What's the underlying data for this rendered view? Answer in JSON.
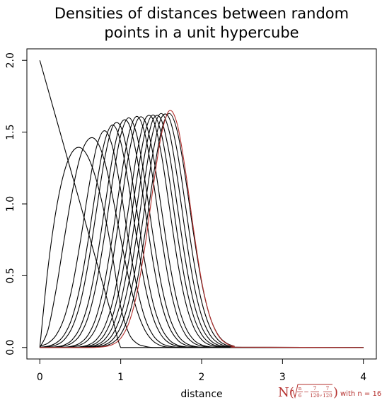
{
  "chart_data": {
    "type": "line",
    "title": [
      "Densities of distances between random",
      "points in a unit hypercube"
    ],
    "xlabel": "distance",
    "annotation": {
      "open": "N(",
      "frac1": [
        "n",
        "6"
      ],
      "minus": "−",
      "frac2": [
        "7",
        "120"
      ],
      "sep": ",",
      "frac3": [
        "7",
        "120"
      ],
      "close": ")",
      "suffix": "with n = 16"
    },
    "xlim": [
      -0.16,
      4.16
    ],
    "ylim": [
      -0.08,
      2.08
    ],
    "xticks": [
      0,
      1,
      2,
      3,
      4
    ],
    "yticks": [
      {
        "value": 0,
        "label": "0.0"
      },
      {
        "value": 0.5,
        "label": "0.5"
      },
      {
        "value": 1,
        "label": "1.0"
      },
      {
        "value": 1.5,
        "label": "1.5"
      },
      {
        "value": 2,
        "label": "2.0"
      }
    ],
    "grid": false,
    "x": [
      0,
      0.1,
      0.2,
      0.3,
      0.4,
      0.5,
      0.6,
      0.7,
      0.8,
      0.9,
      1.0,
      1.1,
      1.2,
      1.3,
      1.4,
      1.5,
      1.6,
      1.7,
      1.8,
      1.9,
      2.0,
      2.1,
      2.2,
      2.3,
      2.4,
      2.5,
      4
    ],
    "series": [
      {
        "color": "#000000",
        "values": [
          2,
          1.8,
          1.6,
          1.4,
          1.2,
          1.0,
          0.8,
          0.6,
          0.4,
          0.2,
          0,
          0,
          0,
          0,
          0,
          0,
          0,
          0,
          0,
          0,
          0,
          0,
          0,
          0,
          0,
          0,
          0
        ]
      },
      {
        "color": "#000000",
        "values": [
          0,
          0.55,
          0.953,
          1.219,
          1.361,
          1.392,
          1.322,
          1.164,
          0.931,
          0.633,
          0.283,
          0.099,
          0.029,
          0.008,
          0,
          0,
          0,
          0,
          0,
          0,
          0,
          0,
          0,
          0,
          0,
          0,
          0
        ]
      },
      {
        "color": "#000000",
        "values": [
          0,
          0.12,
          0.4,
          0.75,
          1.08,
          1.33,
          1.45,
          1.44,
          1.3,
          1.05,
          0.76,
          0.48,
          0.26,
          0.12,
          0.045,
          0.012,
          0.002,
          0,
          0,
          0,
          0,
          0,
          0,
          0,
          0,
          0,
          0
        ]
      },
      {
        "color": "#000000",
        "values": [
          0.009,
          0.03,
          0.085,
          0.204,
          0.42,
          0.735,
          1.096,
          1.394,
          1.51,
          1.394,
          1.096,
          0.735,
          0.42,
          0.204,
          0.085,
          0.03,
          0.009,
          0.002,
          0,
          0,
          0,
          0,
          0,
          0,
          0,
          0,
          0
        ]
      },
      {
        "color": "#000000",
        "values": [
          0.002,
          0.009,
          0.031,
          0.087,
          0.209,
          0.431,
          0.755,
          1.125,
          1.431,
          1.55,
          1.431,
          1.125,
          0.755,
          0.431,
          0.209,
          0.087,
          0.031,
          0.009,
          0.002,
          0,
          0,
          0,
          0,
          0,
          0,
          0,
          0
        ]
      },
      {
        "color": "#000000",
        "values": [
          0.001,
          0.005,
          0.017,
          0.053,
          0.14,
          0.309,
          0.589,
          0.953,
          1.311,
          1.539,
          1.539,
          1.311,
          0.953,
          0.589,
          0.309,
          0.14,
          0.053,
          0.017,
          0.005,
          0.001,
          0,
          0,
          0,
          0,
          0,
          0,
          0
        ]
      },
      {
        "color": "#000000",
        "values": [
          0,
          0.001,
          0.005,
          0.017,
          0.054,
          0.142,
          0.313,
          0.596,
          0.965,
          1.328,
          1.558,
          1.558,
          1.328,
          0.965,
          0.596,
          0.313,
          0.142,
          0.054,
          0.017,
          0.005,
          0.001,
          0,
          0,
          0,
          0,
          0,
          0
        ]
      },
      {
        "color": "#000000",
        "values": [
          0,
          0,
          0.002,
          0.01,
          0.032,
          0.09,
          0.216,
          0.445,
          0.779,
          1.162,
          1.477,
          1.6,
          1.477,
          1.162,
          0.779,
          0.445,
          0.216,
          0.09,
          0.032,
          0.01,
          0.002,
          0,
          0,
          0,
          0,
          0,
          0
        ]
      },
      {
        "color": "#000000",
        "values": [
          0,
          0,
          0,
          0.002,
          0.01,
          0.032,
          0.09,
          0.217,
          0.448,
          0.784,
          1.169,
          1.486,
          1.61,
          1.486,
          1.169,
          0.784,
          0.448,
          0.217,
          0.09,
          0.032,
          0.01,
          0.002,
          0,
          0,
          0,
          0,
          0
        ]
      },
      {
        "color": "#000000",
        "values": [
          0,
          0,
          0,
          0.001,
          0.005,
          0.018,
          0.055,
          0.143,
          0.317,
          0.604,
          0.977,
          1.344,
          1.578,
          1.578,
          1.344,
          0.977,
          0.604,
          0.317,
          0.143,
          0.055,
          0.018,
          0.005,
          0.001,
          0,
          0,
          0,
          0
        ]
      },
      {
        "color": "#000000",
        "values": [
          0,
          0,
          0,
          0,
          0.001,
          0.005,
          0.018,
          0.055,
          0.144,
          0.319,
          0.608,
          0.983,
          1.353,
          1.588,
          1.588,
          1.353,
          0.983,
          0.608,
          0.319,
          0.144,
          0.055,
          0.018,
          0.005,
          0.001,
          0,
          0,
          0
        ]
      },
      {
        "color": "#000000",
        "values": [
          0,
          0,
          0,
          0,
          0,
          0.002,
          0.01,
          0.032,
          0.091,
          0.219,
          0.45,
          0.789,
          1.176,
          1.495,
          1.62,
          1.495,
          1.176,
          0.789,
          0.45,
          0.219,
          0.091,
          0.032,
          0.01,
          0.002,
          0,
          0,
          0
        ]
      },
      {
        "color": "#000000",
        "values": [
          0,
          0,
          0,
          0,
          0,
          0.001,
          0.005,
          0.018,
          0.055,
          0.144,
          0.319,
          0.608,
          0.983,
          1.353,
          1.588,
          1.588,
          1.353,
          0.983,
          0.608,
          0.319,
          0.144,
          0.055,
          0.018,
          0.005,
          0.001,
          0,
          0
        ]
      },
      {
        "color": "#000000",
        "values": [
          0,
          0,
          0,
          0,
          0,
          0,
          0.002,
          0.01,
          0.033,
          0.091,
          0.22,
          0.453,
          0.794,
          1.183,
          1.504,
          1.63,
          1.504,
          1.183,
          0.794,
          0.453,
          0.22,
          0.091,
          0.033,
          0.01,
          0.002,
          0,
          0
        ]
      },
      {
        "color": "#000000",
        "values": [
          0,
          0,
          0,
          0,
          0,
          0,
          0.001,
          0.005,
          0.018,
          0.055,
          0.145,
          0.321,
          0.611,
          0.989,
          1.361,
          1.597,
          1.597,
          1.361,
          0.989,
          0.611,
          0.321,
          0.145,
          0.055,
          0.018,
          0.005,
          0.001,
          0
        ]
      },
      {
        "color": "#000000",
        "values": [
          0,
          0,
          0,
          0,
          0,
          0,
          0,
          0.002,
          0.01,
          0.033,
          0.091,
          0.22,
          0.453,
          0.794,
          1.183,
          1.504,
          1.63,
          1.504,
          1.183,
          0.794,
          0.453,
          0.22,
          0.091,
          0.033,
          0.01,
          0.002,
          0
        ]
      },
      {
        "color": "#b5302e",
        "values": [
          0,
          0,
          0,
          0,
          0,
          0,
          0,
          0.001,
          0.006,
          0.021,
          0.064,
          0.17,
          0.378,
          0.705,
          1.112,
          1.475,
          1.649,
          1.553,
          1.232,
          0.824,
          0.464,
          0.22,
          0.088,
          0.03,
          0.008,
          0.002,
          0
        ]
      }
    ]
  }
}
